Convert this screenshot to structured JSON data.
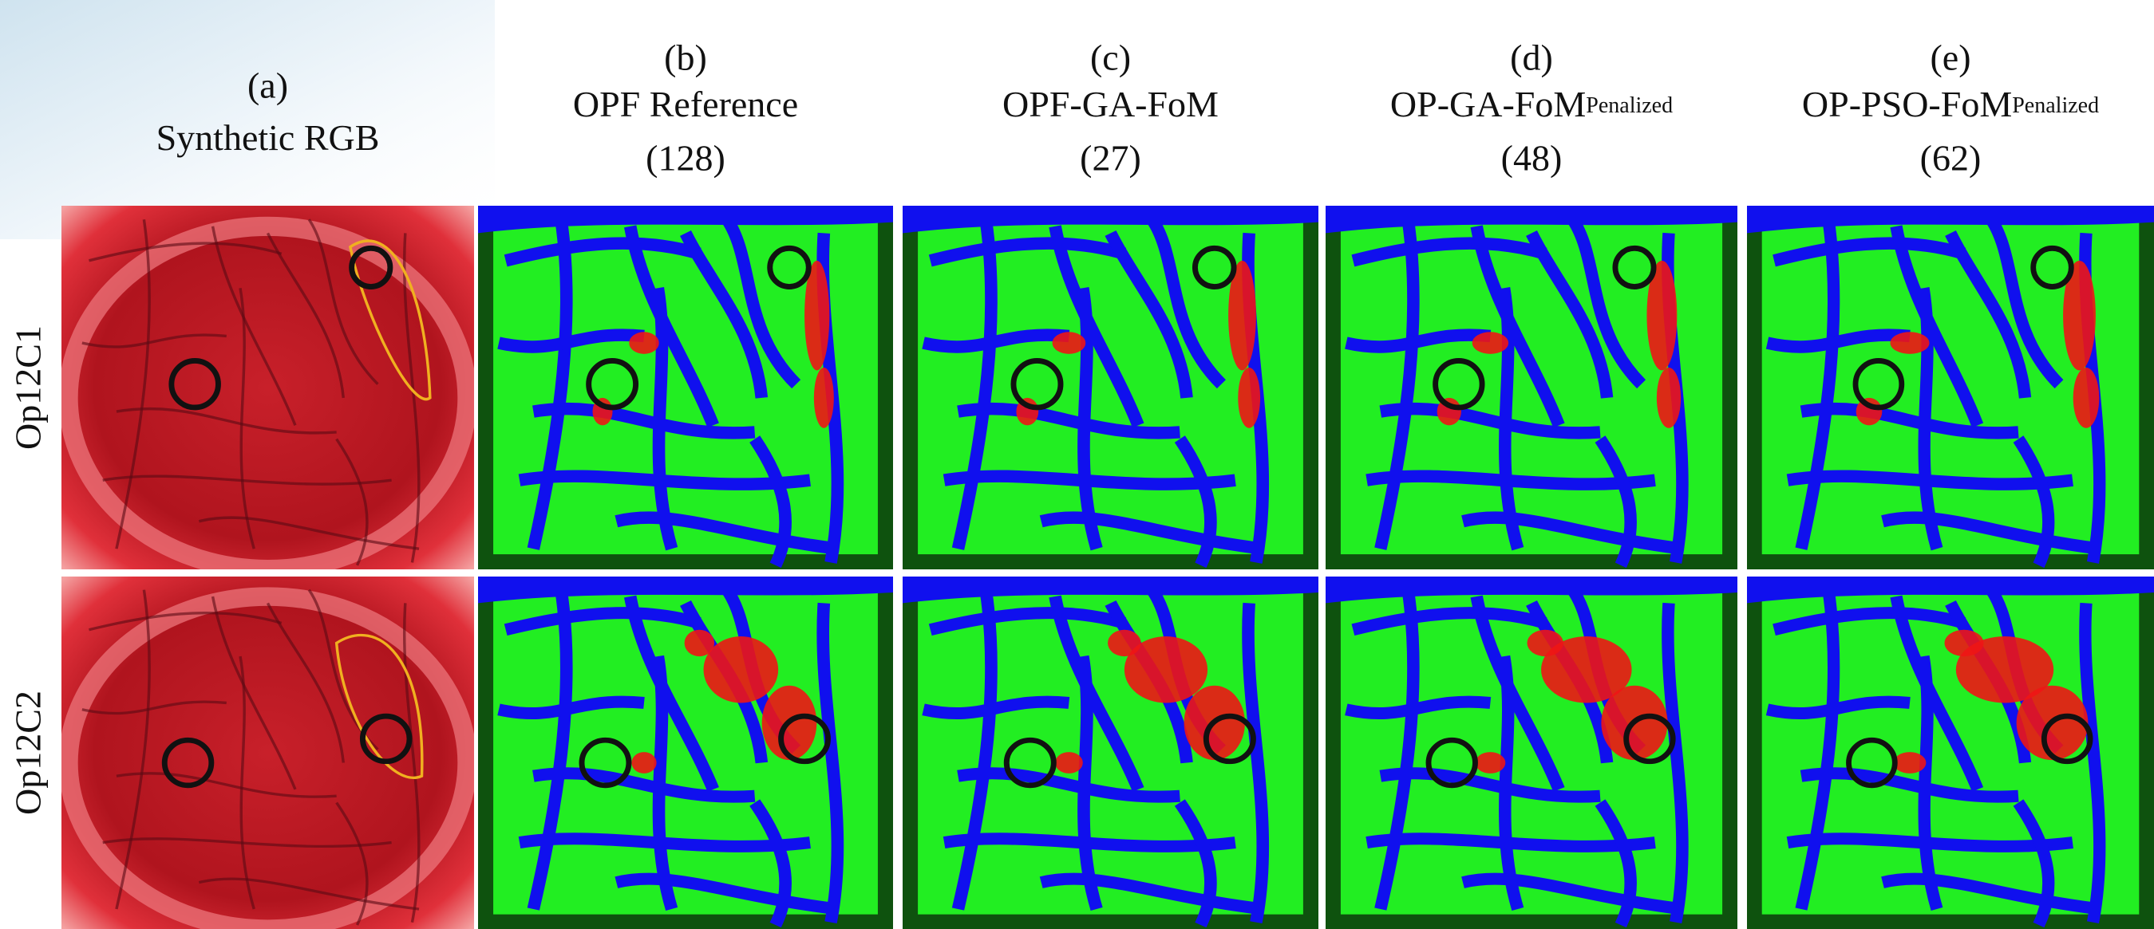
{
  "columns": [
    {
      "letter": "(a)",
      "name": "Synthetic RGB"
    },
    {
      "letter": "(b)",
      "name": "OPF Reference",
      "count": "(128)"
    },
    {
      "letter": "(c)",
      "name": "OPF-GA-FoM",
      "count": "(27)"
    },
    {
      "letter": "(d)",
      "name": "OP-GA-FoM",
      "subscript": "Penalized",
      "count": "(48)"
    },
    {
      "letter": "(e)",
      "name": "OP-PSO-FoM",
      "subscript": "Penalized",
      "count": "(62)"
    }
  ],
  "rows": [
    {
      "label": "Op12C1"
    },
    {
      "label": "Op12C2"
    }
  ]
}
